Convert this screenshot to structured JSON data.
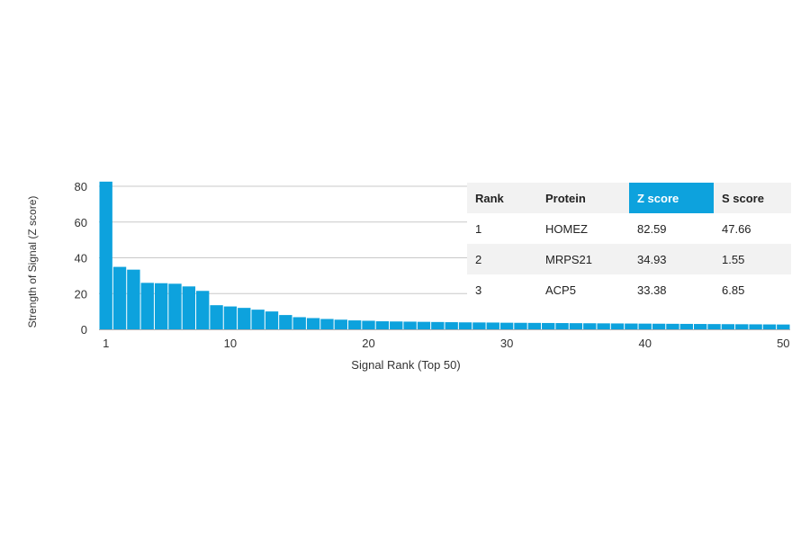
{
  "chart_data": {
    "type": "bar",
    "ylabel": "Strength of Signal (Z score)",
    "xlabel": "Signal Rank (Top 50)",
    "ylim": [
      0,
      80
    ],
    "yticks": [
      0,
      20,
      40,
      60,
      80
    ],
    "xticks": [
      1,
      10,
      20,
      30,
      40,
      50
    ],
    "grid": "horizontal",
    "bar_color": "#0da2dd",
    "x": [
      1,
      2,
      3,
      4,
      5,
      6,
      7,
      8,
      9,
      10,
      11,
      12,
      13,
      14,
      15,
      16,
      17,
      18,
      19,
      20,
      21,
      22,
      23,
      24,
      25,
      26,
      27,
      28,
      29,
      30,
      31,
      32,
      33,
      34,
      35,
      36,
      37,
      38,
      39,
      40,
      41,
      42,
      43,
      44,
      45,
      46,
      47,
      48,
      49,
      50
    ],
    "values": [
      82.59,
      34.93,
      33.38,
      26.0,
      25.8,
      25.5,
      24.0,
      21.5,
      13.5,
      12.8,
      12.0,
      11.0,
      10.0,
      8.0,
      6.8,
      6.3,
      5.8,
      5.4,
      5.0,
      4.8,
      4.5,
      4.4,
      4.3,
      4.2,
      4.1,
      4.0,
      3.9,
      3.85,
      3.8,
      3.7,
      3.65,
      3.6,
      3.55,
      3.5,
      3.45,
      3.4,
      3.35,
      3.3,
      3.25,
      3.2,
      3.15,
      3.1,
      3.05,
      3.0,
      2.95,
      2.9,
      2.85,
      2.8,
      2.75,
      2.7
    ]
  },
  "table": {
    "headers": [
      "Rank",
      "Protein",
      "Z score",
      "S score"
    ],
    "highlight_color": "#0da2dd",
    "rows": [
      {
        "rank": "1",
        "protein": "HOMEZ",
        "z": "82.59",
        "s": "47.66"
      },
      {
        "rank": "2",
        "protein": "MRPS21",
        "z": "34.93",
        "s": "1.55"
      },
      {
        "rank": "3",
        "protein": "ACP5",
        "z": "33.38",
        "s": "6.85"
      }
    ]
  }
}
